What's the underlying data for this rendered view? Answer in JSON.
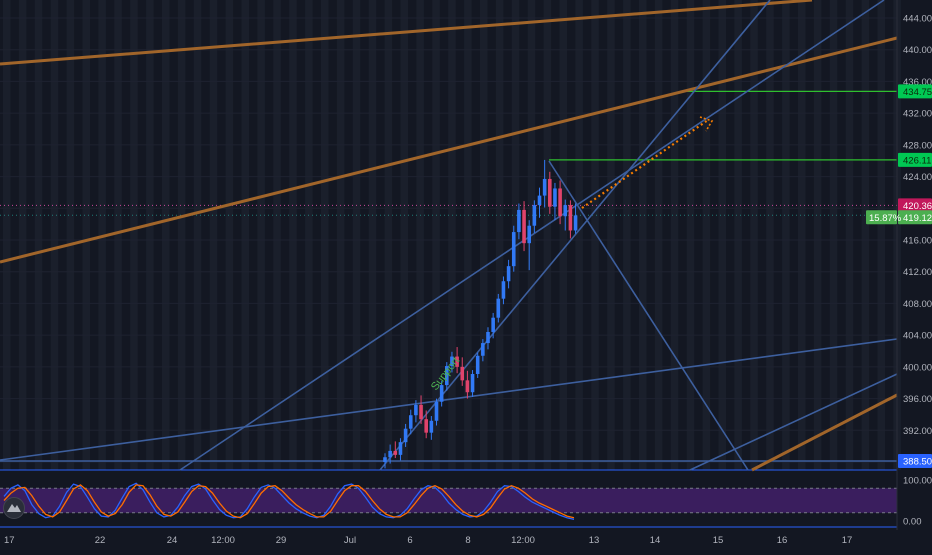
{
  "colors": {
    "background": "#131722",
    "session_band": "#1a1f2b",
    "grid": "#1e2230",
    "axis_text": "#b2b5be",
    "up_candle": "#3179f5",
    "down_candle": "#e0436b",
    "trendline_blue": "#3d5f9e",
    "trendline_orange": "#a1652a",
    "projection_orange": "#f57c00",
    "green_line": "#2fbf2f",
    "green_label_bg": "#4caf50",
    "price_dotted": "#c8489a",
    "price_label_bg": "#c2185b",
    "stoch_band": "#3a1e5e",
    "stoch_k": "#2962ff",
    "stoch_d": "#ff6d00"
  },
  "chart_data": {
    "type": "candlestick",
    "main_panel": {
      "y_axis_ticks": [
        "444.00",
        "440.00",
        "436.00",
        "432.00",
        "428.00",
        "424.00",
        "420.00",
        "416.00",
        "412.00",
        "408.00",
        "404.00",
        "400.00",
        "396.00",
        "392.00",
        "388.00"
      ],
      "ylim": [
        387.5,
        445.5
      ],
      "price_labels": [
        {
          "text": "434.75",
          "value": 434.75,
          "style": "green"
        },
        {
          "text": "426.11",
          "value": 426.11,
          "style": "green"
        },
        {
          "text": "420.36",
          "value": 420.36,
          "style": "pink"
        },
        {
          "text": "419.12",
          "value": 419.12,
          "style": "green"
        },
        {
          "text": "388.50",
          "value": 388.5,
          "style": "blue"
        }
      ],
      "badge": "15.87%",
      "annotation": "Support",
      "candles": [
        {
          "o": 388.0,
          "h": 389.1,
          "l": 387.2,
          "c": 388.6
        },
        {
          "o": 388.6,
          "h": 390.2,
          "l": 387.8,
          "c": 389.4
        },
        {
          "o": 389.4,
          "h": 390.6,
          "l": 388.5,
          "c": 388.9
        },
        {
          "o": 388.9,
          "h": 391.0,
          "l": 388.2,
          "c": 390.5
        },
        {
          "o": 390.5,
          "h": 392.8,
          "l": 389.9,
          "c": 392.2
        },
        {
          "o": 392.2,
          "h": 394.6,
          "l": 391.5,
          "c": 393.9
        },
        {
          "o": 393.9,
          "h": 395.8,
          "l": 393.0,
          "c": 395.2
        },
        {
          "o": 395.2,
          "h": 396.4,
          "l": 392.8,
          "c": 393.4
        },
        {
          "o": 393.4,
          "h": 394.5,
          "l": 391.0,
          "c": 391.7
        },
        {
          "o": 391.7,
          "h": 393.8,
          "l": 390.8,
          "c": 393.2
        },
        {
          "o": 393.2,
          "h": 396.0,
          "l": 392.6,
          "c": 395.6
        },
        {
          "o": 395.6,
          "h": 398.2,
          "l": 395.0,
          "c": 397.7
        },
        {
          "o": 397.7,
          "h": 400.6,
          "l": 397.0,
          "c": 400.1
        },
        {
          "o": 400.1,
          "h": 401.9,
          "l": 399.3,
          "c": 401.3
        },
        {
          "o": 401.3,
          "h": 402.5,
          "l": 399.2,
          "c": 400.0
        },
        {
          "o": 400.0,
          "h": 401.2,
          "l": 397.6,
          "c": 398.3
        },
        {
          "o": 398.3,
          "h": 399.5,
          "l": 396.0,
          "c": 396.8
        },
        {
          "o": 396.8,
          "h": 399.6,
          "l": 396.2,
          "c": 399.1
        },
        {
          "o": 399.1,
          "h": 401.8,
          "l": 398.6,
          "c": 401.4
        },
        {
          "o": 401.4,
          "h": 403.5,
          "l": 400.7,
          "c": 403.0
        },
        {
          "o": 403.0,
          "h": 405.0,
          "l": 402.2,
          "c": 404.4
        },
        {
          "o": 404.4,
          "h": 406.8,
          "l": 403.6,
          "c": 406.2
        },
        {
          "o": 406.2,
          "h": 409.2,
          "l": 405.6,
          "c": 408.6
        },
        {
          "o": 408.6,
          "h": 411.4,
          "l": 407.9,
          "c": 410.8
        },
        {
          "o": 410.8,
          "h": 413.5,
          "l": 409.9,
          "c": 412.7
        },
        {
          "o": 412.7,
          "h": 417.8,
          "l": 412.0,
          "c": 417.0
        },
        {
          "o": 417.0,
          "h": 420.6,
          "l": 416.1,
          "c": 419.8
        },
        {
          "o": 419.8,
          "h": 420.9,
          "l": 414.6,
          "c": 415.6
        },
        {
          "o": 415.6,
          "h": 418.5,
          "l": 412.2,
          "c": 417.8
        },
        {
          "o": 417.8,
          "h": 421.0,
          "l": 416.9,
          "c": 420.4
        },
        {
          "o": 420.4,
          "h": 422.6,
          "l": 418.8,
          "c": 421.6
        },
        {
          "o": 421.6,
          "h": 426.1,
          "l": 420.1,
          "c": 423.7
        },
        {
          "o": 423.7,
          "h": 424.6,
          "l": 419.3,
          "c": 420.2
        },
        {
          "o": 420.2,
          "h": 423.2,
          "l": 418.5,
          "c": 422.5
        },
        {
          "o": 422.5,
          "h": 423.5,
          "l": 418.0,
          "c": 419.0
        },
        {
          "o": 419.0,
          "h": 421.1,
          "l": 417.2,
          "c": 420.4
        },
        {
          "o": 420.4,
          "h": 421.0,
          "l": 416.2,
          "c": 417.2
        },
        {
          "o": 417.2,
          "h": 420.6,
          "l": 416.8,
          "c": 419.1
        }
      ]
    },
    "oscillator_panel": {
      "y_axis_ticks": [
        "100.00",
        "0.00"
      ],
      "upper_band": 80,
      "lower_band": 20,
      "series": [
        {
          "values": [
            60,
            80,
            88,
            74,
            40,
            18,
            8,
            12,
            36,
            70,
            90,
            84,
            58,
            30,
            12,
            10,
            26,
            56,
            84,
            92,
            76,
            46,
            20,
            10,
            14,
            34,
            62,
            84,
            90,
            78,
            52,
            28,
            14,
            8,
            10,
            30,
            58,
            82,
            88,
            80,
            62,
            44,
            30,
            20,
            12,
            8,
            14,
            36,
            66,
            86,
            90,
            80,
            58,
            34,
            18,
            10,
            8,
            14,
            30,
            54,
            76,
            86,
            82,
            66,
            44,
            28,
            16,
            10,
            12,
            24,
            46,
            72,
            86,
            84,
            72,
            58,
            46,
            38,
            30,
            22,
            14,
            8,
            4
          ]
        },
        {
          "values": [
            50,
            68,
            80,
            82,
            62,
            36,
            16,
            10,
            22,
            50,
            78,
            88,
            74,
            46,
            22,
            12,
            18,
            40,
            70,
            88,
            86,
            64,
            36,
            16,
            12,
            22,
            46,
            72,
            86,
            84,
            68,
            44,
            24,
            12,
            8,
            18,
            42,
            68,
            84,
            86,
            74,
            56,
            40,
            28,
            18,
            10,
            10,
            24,
            50,
            74,
            86,
            86,
            72,
            50,
            30,
            16,
            10,
            10,
            20,
            40,
            62,
            80,
            86,
            78,
            60,
            40,
            24,
            14,
            10,
            16,
            32,
            56,
            78,
            86,
            80,
            68,
            54,
            44,
            36,
            28,
            20,
            12,
            8
          ]
        }
      ]
    },
    "x_axis": {
      "ticks": [
        "17",
        "22",
        "24",
        "12:00",
        "29",
        "Jul",
        "6",
        "8",
        "12:00",
        "13",
        "14",
        "15",
        "16",
        "17"
      ]
    }
  }
}
